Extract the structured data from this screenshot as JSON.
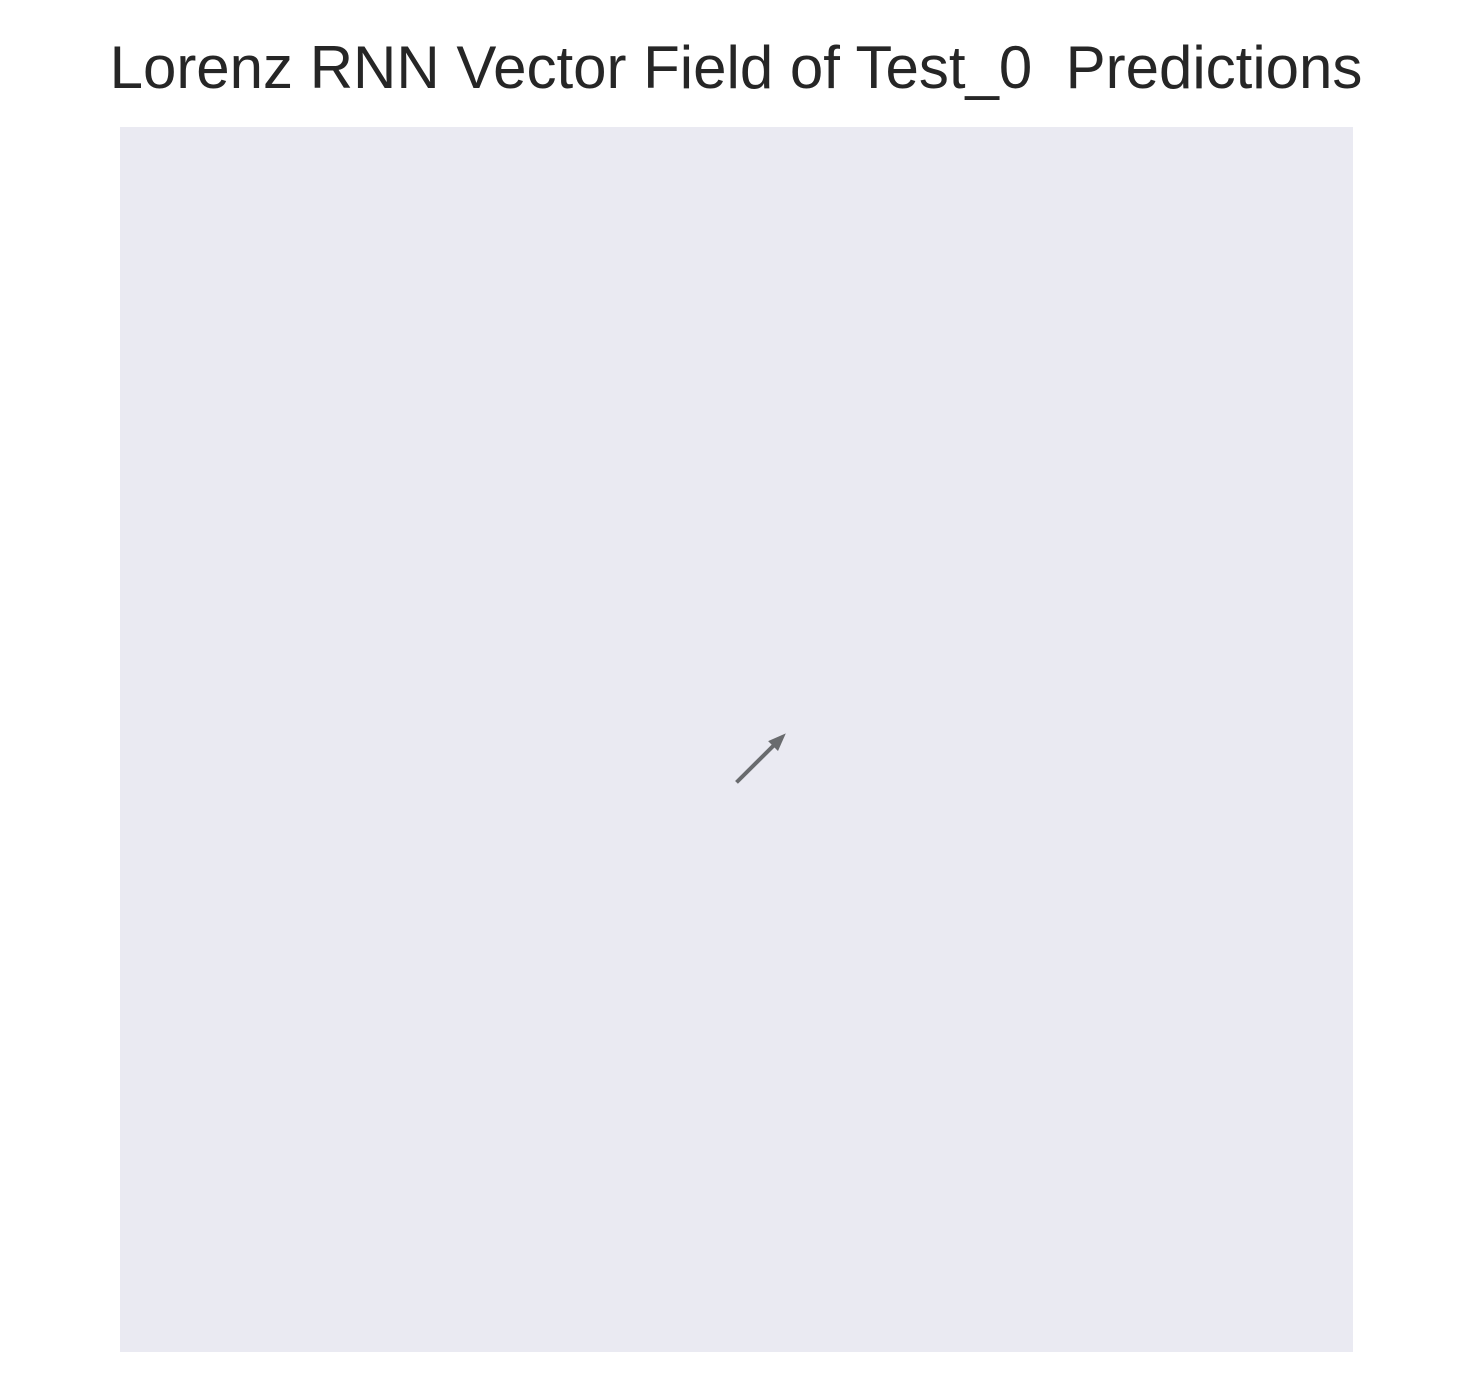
{
  "chart_data": {
    "type": "quiver",
    "title": "Lorenz RNN Vector Field of Test_0  Predictions",
    "xlabel": "",
    "ylabel": "",
    "grid": false,
    "axis_ticks": false,
    "background_color": "#eaeaf2",
    "arrow_color": "#696b6e",
    "xlim": [
      -1,
      1
    ],
    "ylim": [
      -1,
      1
    ],
    "vectors": [
      {
        "x": 0.0,
        "y": -0.07,
        "u": 0.08,
        "v": 0.08
      }
    ]
  }
}
